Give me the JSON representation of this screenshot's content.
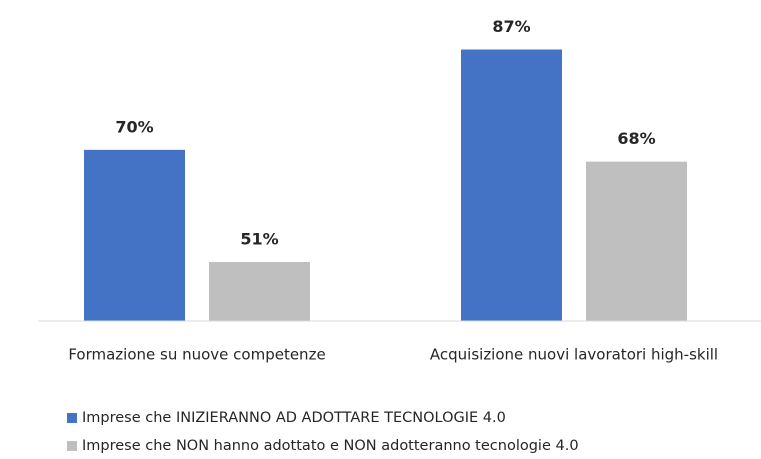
{
  "chart_data": {
    "type": "bar",
    "categories": [
      "Formazione su nuove competenze",
      "Acquisizione nuovi lavoratori high-skill"
    ],
    "series": [
      {
        "name": "Imprese che INIZIERANNO AD ADOTTARE TECNOLOGIE 4.0",
        "color": "#4472c4",
        "values": [
          70,
          87
        ],
        "value_labels": [
          "70%",
          "87%"
        ]
      },
      {
        "name": "Imprese che NON hanno adottato e NON adotteranno tecnologie 4.0",
        "color": "#bfbfbf",
        "values": [
          51,
          68
        ],
        "value_labels": [
          "51%",
          "68%"
        ]
      }
    ],
    "ylim": [
      41,
      92
    ],
    "legend": "bottom"
  }
}
